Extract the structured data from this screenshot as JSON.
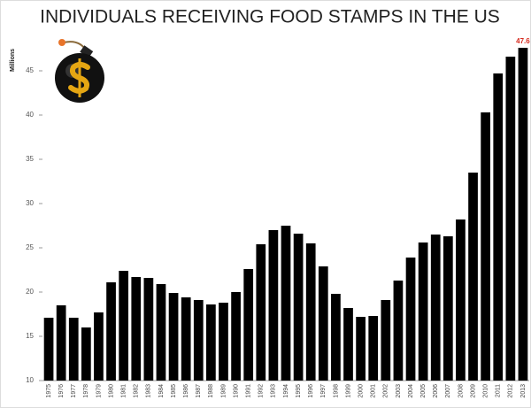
{
  "chart_data": {
    "type": "bar",
    "title": "INDIVIDUALS RECEIVING FOOD STAMPS IN THE US",
    "y_label": "Millions",
    "categories": [
      "1975",
      "1976",
      "1977",
      "1978",
      "1979",
      "1980",
      "1981",
      "1982",
      "1983",
      "1984",
      "1985",
      "1986",
      "1987",
      "1988",
      "1989",
      "1990",
      "1991",
      "1992",
      "1993",
      "1994",
      "1995",
      "1996",
      "1997",
      "1998",
      "1999",
      "2000",
      "2001",
      "2002",
      "2003",
      "2004",
      "2005",
      "2006",
      "2007",
      "2008",
      "2009",
      "2010",
      "2011",
      "2012",
      "2013"
    ],
    "values": [
      17.1,
      18.5,
      17.1,
      16.0,
      17.7,
      21.1,
      22.4,
      21.7,
      21.6,
      20.9,
      19.9,
      19.4,
      19.1,
      18.6,
      18.8,
      20.0,
      22.6,
      25.4,
      27.0,
      27.5,
      26.6,
      25.5,
      22.9,
      19.8,
      18.2,
      17.2,
      17.3,
      19.1,
      21.3,
      23.9,
      25.6,
      26.5,
      26.3,
      28.2,
      33.5,
      40.3,
      44.7,
      46.6,
      47.6
    ],
    "value_labels": [
      null,
      null,
      null,
      null,
      null,
      null,
      null,
      null,
      null,
      null,
      null,
      null,
      null,
      null,
      null,
      null,
      null,
      null,
      null,
      null,
      null,
      null,
      null,
      null,
      null,
      null,
      null,
      null,
      null,
      null,
      null,
      null,
      null,
      null,
      null,
      null,
      null,
      null,
      "47.6"
    ],
    "value_label_color": "#d62b1f",
    "color": "#000000",
    "ylim": [
      10,
      49
    ],
    "yticks": [
      10,
      15,
      20,
      25,
      30,
      35,
      40,
      45
    ],
    "grid": false
  }
}
